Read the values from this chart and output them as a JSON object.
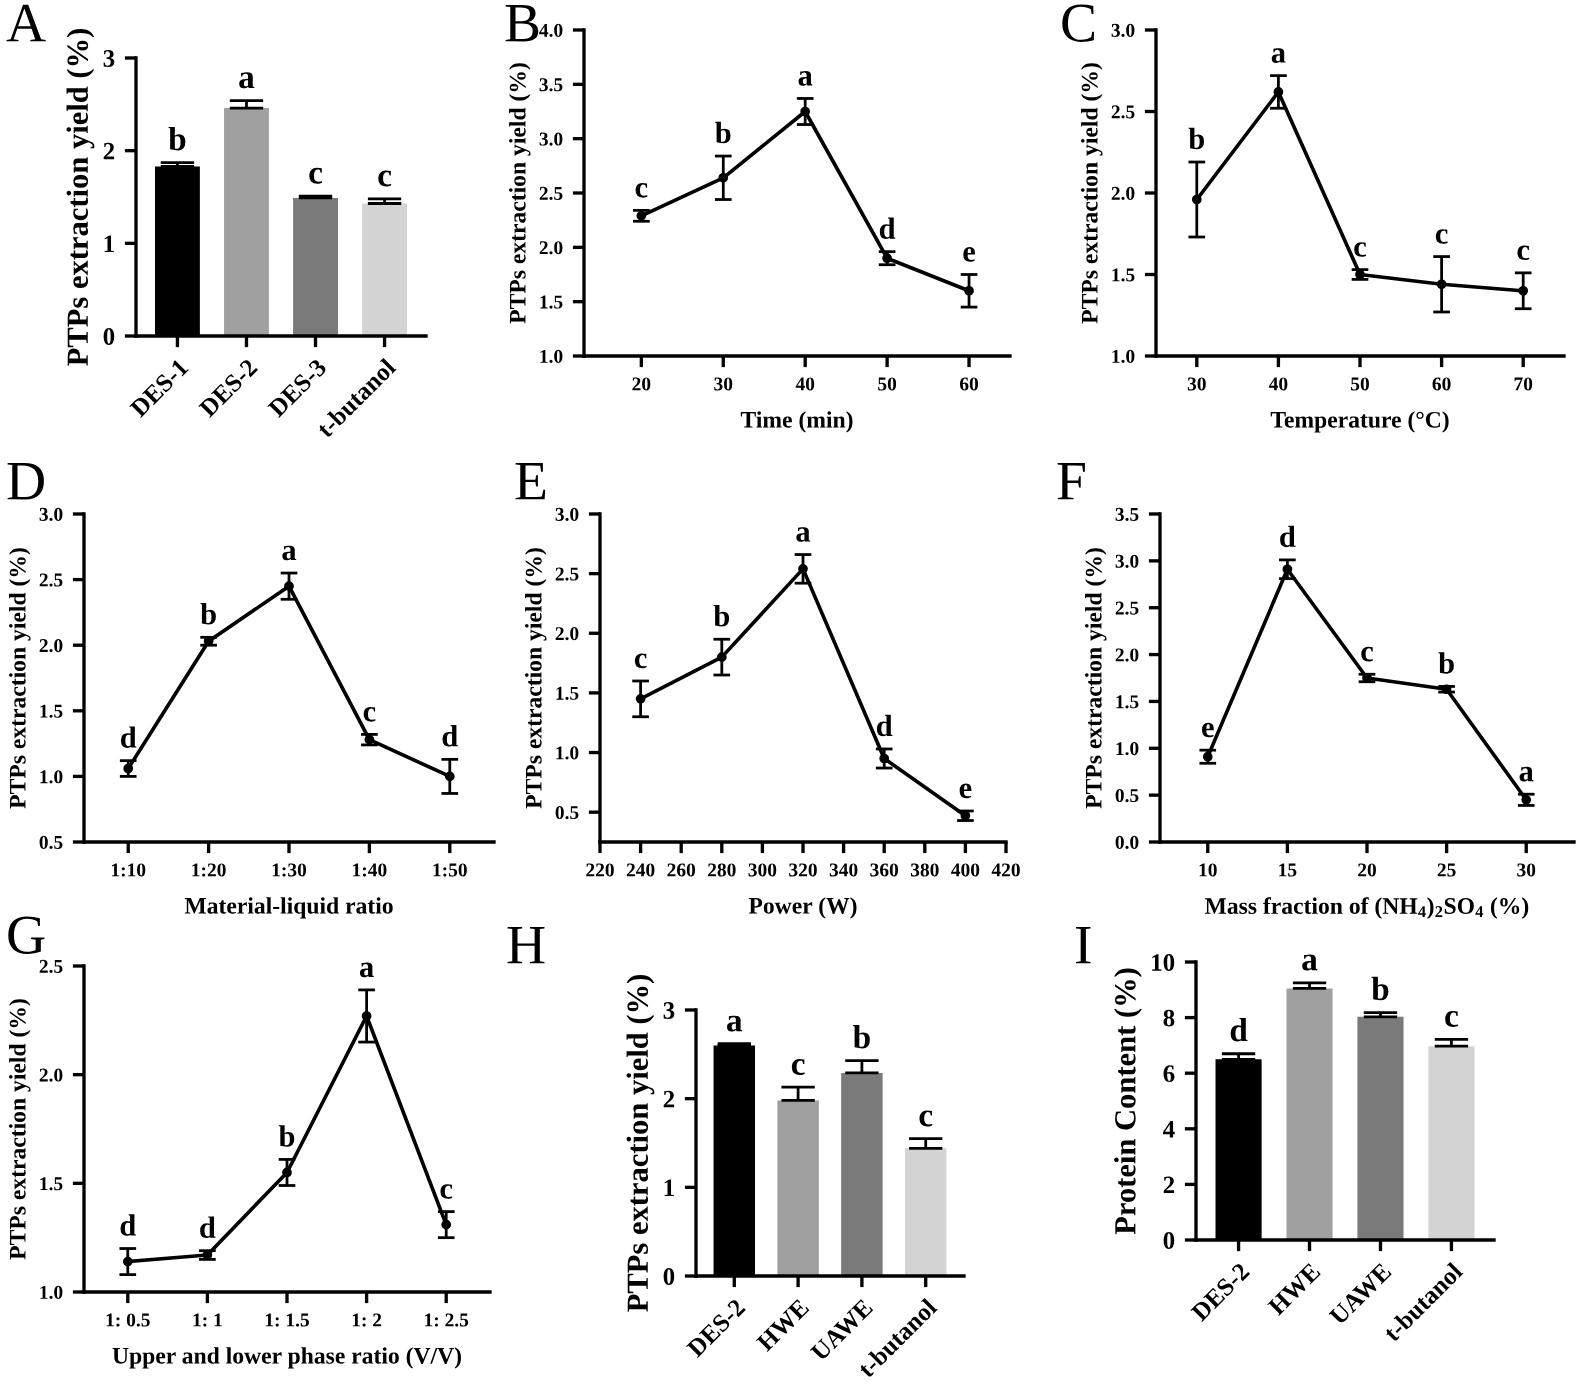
{
  "chart_data": [
    {
      "type": "bar",
      "title": "A",
      "ylabel": "PTPs extraction yield (%)",
      "categories": [
        "DES-1",
        "DES-2",
        "DES-3",
        "t-butanol"
      ],
      "values": [
        1.83,
        2.46,
        1.49,
        1.43
      ],
      "errors": [
        0.04,
        0.08,
        0.02,
        0.05
      ],
      "value_labels": [
        "b",
        "a",
        "c",
        "c"
      ],
      "colors": [
        "#000000",
        "#a0a0a0",
        "#7a7a7a",
        "#d3d3d3"
      ],
      "ylim": [
        0,
        3
      ],
      "yticks": [
        0,
        1,
        2,
        3
      ]
    },
    {
      "type": "line",
      "title": "B",
      "xlabel": "Time (min)",
      "ylabel": "PTPs extraction yield (%)",
      "x": [
        20,
        30,
        40,
        50,
        60
      ],
      "values": [
        2.29,
        2.64,
        3.25,
        1.9,
        1.6
      ],
      "errors": [
        0.05,
        0.2,
        0.12,
        0.06,
        0.15
      ],
      "value_labels": [
        "c",
        "b",
        "a",
        "d",
        "e"
      ],
      "color": "#000000",
      "marker": "circle",
      "line_style": "solid",
      "xlim": [
        13,
        65
      ],
      "xticks": [
        20,
        30,
        40,
        50,
        60
      ],
      "ylim": [
        1.0,
        4.0
      ],
      "yticks": [
        {
          "value": 1,
          "label": "1.0"
        },
        1.5,
        {
          "value": 2,
          "label": "2.0"
        },
        2.5,
        {
          "value": 3,
          "label": "3.0"
        },
        3.5,
        {
          "value": 4,
          "label": "4.0"
        }
      ]
    },
    {
      "type": "line",
      "title": "C",
      "xlabel": "Temperature (°C)",
      "ylabel": "PTPs extraction yield (%)",
      "x": [
        30,
        40,
        50,
        60,
        70
      ],
      "values": [
        1.96,
        2.62,
        1.5,
        1.44,
        1.4
      ],
      "errors": [
        0.23,
        0.1,
        0.03,
        0.17,
        0.11
      ],
      "value_labels": [
        "b",
        "a",
        "c",
        "c",
        "c"
      ],
      "color": "#000000",
      "marker": "circle",
      "line_style": "solid",
      "xlim": [
        25,
        75
      ],
      "xticks": [
        30,
        40,
        50,
        60,
        70
      ],
      "ylim": [
        1.0,
        3.0
      ],
      "yticks": [
        {
          "value": 1,
          "label": "1.0"
        },
        1.5,
        {
          "value": 2,
          "label": "2.0"
        },
        2.5,
        {
          "value": 3,
          "label": "3.0"
        }
      ]
    },
    {
      "type": "line",
      "title": "D",
      "xlabel": "Material-liquid ratio",
      "ylabel": "PTPs extraction yield (%)",
      "categories": [
        "1:10",
        "1:20",
        "1:30",
        "1:40",
        "1:50"
      ],
      "values": [
        1.06,
        2.03,
        2.45,
        1.28,
        1.0
      ],
      "errors": [
        0.06,
        0.03,
        0.1,
        0.04,
        0.13
      ],
      "value_labels": [
        "d",
        "b",
        "a",
        "c",
        "d"
      ],
      "color": "#000000",
      "marker": "circle",
      "line_style": "solid",
      "ylim": [
        0.5,
        3.0
      ],
      "yticks": [
        0.5,
        {
          "value": 1,
          "label": "1.0"
        },
        1.5,
        {
          "value": 2,
          "label": "2.0"
        },
        2.5,
        {
          "value": 3,
          "label": "3.0"
        }
      ]
    },
    {
      "type": "line",
      "title": "E",
      "xlabel": "Power (W)",
      "ylabel": "PTPs extraction yield (%)",
      "x": [
        240,
        280,
        320,
        360,
        400
      ],
      "values": [
        1.45,
        1.8,
        2.54,
        0.95,
        0.47
      ],
      "errors": [
        0.15,
        0.15,
        0.12,
        0.08,
        0.04
      ],
      "value_labels": [
        "c",
        "b",
        "a",
        "d",
        "e"
      ],
      "color": "#000000",
      "marker": "circle",
      "line_style": "solid",
      "xlim": [
        220,
        420
      ],
      "xticks": [
        220,
        240,
        260,
        280,
        300,
        320,
        340,
        360,
        380,
        400,
        420
      ],
      "ylim": [
        0.25,
        3.0
      ],
      "yticks": [
        0.5,
        {
          "value": 1,
          "label": "1.0"
        },
        1.5,
        {
          "value": 2,
          "label": "2.0"
        },
        2.5,
        {
          "value": 3,
          "label": "3.0"
        }
      ]
    },
    {
      "type": "line",
      "title": "F",
      "xlabel": "Mass fraction of (NH$_{4}$)$_{2}$SO$_{4}$ (%)",
      "ylabel": "PTPs extraction yield (%)",
      "x": [
        10,
        15,
        20,
        25,
        30
      ],
      "values": [
        0.91,
        2.91,
        1.75,
        1.63,
        0.45
      ],
      "errors": [
        0.07,
        0.1,
        0.04,
        0.03,
        0.06
      ],
      "value_labels": [
        "e",
        "d",
        "c",
        "b",
        "a"
      ],
      "color": "#000000",
      "marker": "circle",
      "line_style": "solid",
      "xlim": [
        7,
        33
      ],
      "xticks": [
        10,
        15,
        20,
        25,
        30
      ],
      "ylim": [
        0.0,
        3.5
      ],
      "yticks": [
        {
          "value": 0,
          "label": "0.0"
        },
        0.5,
        {
          "value": 1,
          "label": "1.0"
        },
        1.5,
        {
          "value": 2,
          "label": "2.0"
        },
        2.5,
        {
          "value": 3,
          "label": "3.0"
        },
        3.5
      ]
    },
    {
      "type": "line",
      "title": "G",
      "xlabel": "Upper and lower phase ratio (V/V)",
      "ylabel": "PTPs extraction yield (%)",
      "categories": [
        "1: 0.5",
        "1: 1",
        "1: 1.5",
        "1: 2",
        "1: 2.5"
      ],
      "values": [
        1.14,
        1.17,
        1.55,
        2.27,
        1.31
      ],
      "errors": [
        0.06,
        0.02,
        0.06,
        0.12,
        0.06
      ],
      "value_labels": [
        "d",
        "d",
        "b",
        "a",
        "c"
      ],
      "color": "#000000",
      "marker": "circle",
      "line_style": "solid",
      "ylim": [
        1.0,
        2.5
      ],
      "yticks": [
        {
          "value": 1,
          "label": "1.0"
        },
        1.5,
        {
          "value": 2,
          "label": "2.0"
        },
        2.5
      ]
    },
    {
      "type": "bar",
      "title": "H",
      "ylabel": "PTPs extraction yield (%)",
      "categories": [
        "DES-2",
        "HWE",
        "UAWE",
        "t-butanol"
      ],
      "values": [
        2.6,
        1.98,
        2.29,
        1.44
      ],
      "errors": [
        0.02,
        0.15,
        0.14,
        0.11
      ],
      "value_labels": [
        "a",
        "c",
        "b",
        "c"
      ],
      "colors": [
        "#000000",
        "#a0a0a0",
        "#7a7a7a",
        "#d3d3d3"
      ],
      "ylim": [
        0,
        3
      ],
      "yticks": [
        0,
        1,
        2,
        3
      ]
    },
    {
      "type": "bar",
      "title": "I",
      "ylabel": "Protein Content (%)",
      "categories": [
        "DES-2",
        "HWE",
        "UAWE",
        "t-butanol"
      ],
      "values": [
        6.5,
        9.05,
        8.03,
        6.97
      ],
      "errors": [
        0.2,
        0.2,
        0.15,
        0.25
      ],
      "value_labels": [
        "d",
        "a",
        "b",
        "c"
      ],
      "colors": [
        "#000000",
        "#a0a0a0",
        "#7a7a7a",
        "#d3d3d3"
      ],
      "ylim": [
        0,
        10
      ],
      "yticks": [
        0,
        2,
        4,
        6,
        8,
        10
      ]
    }
  ]
}
